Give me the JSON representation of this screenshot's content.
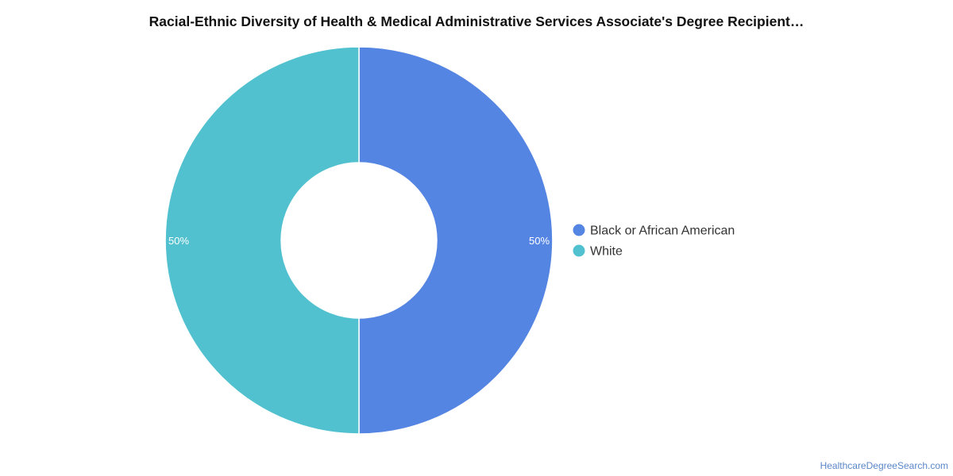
{
  "chart_data": {
    "type": "pie",
    "variant": "donut",
    "title": "Racial-Ethnic Diversity of Health & Medical Administrative Services Associate's Degree Recipient…",
    "slices": [
      {
        "label": "Black or African American",
        "value": 50,
        "display": "50%",
        "color": "#5585e2"
      },
      {
        "label": "White",
        "value": 50,
        "display": "50%",
        "color": "#51c1cf"
      }
    ],
    "legend": {
      "position": "right",
      "items": [
        "Black or African American",
        "White"
      ]
    }
  },
  "footer": {
    "source": "HealthcareDegreeSearch.com"
  }
}
